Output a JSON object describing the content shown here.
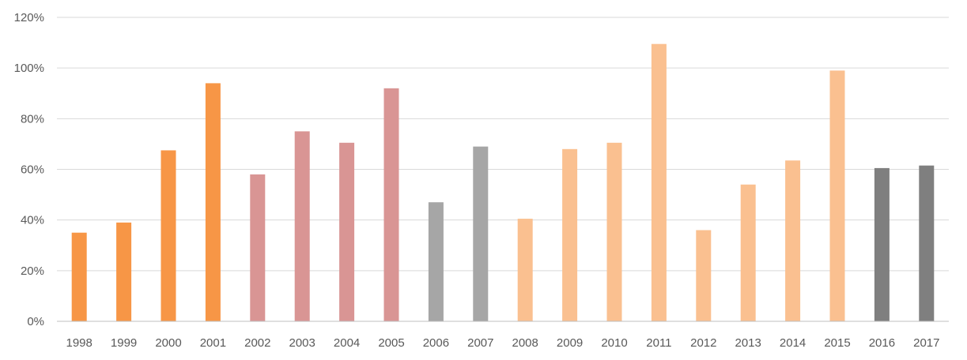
{
  "chart_data": {
    "type": "bar",
    "title": "",
    "xlabel": "",
    "ylabel": "",
    "ylim": [
      0,
      120
    ],
    "y_tick_values": [
      0,
      20,
      40,
      60,
      80,
      100,
      120
    ],
    "y_tick_labels": [
      "0%",
      "20%",
      "40%",
      "60%",
      "80%",
      "100%",
      "120%"
    ],
    "grid": true,
    "legend": "none",
    "categories": [
      "1998",
      "1999",
      "2000",
      "2001",
      "2002",
      "2003",
      "2004",
      "2005",
      "2006",
      "2007",
      "2008",
      "2009",
      "2010",
      "2011",
      "2012",
      "2013",
      "2014",
      "2015",
      "2016",
      "2017"
    ],
    "values": [
      35,
      39,
      67.5,
      94,
      58,
      75,
      70.5,
      92,
      47,
      69,
      40.5,
      68,
      70.5,
      109.5,
      36,
      54,
      63.5,
      99,
      60.5,
      61.5
    ],
    "colors": [
      "#f79646",
      "#f79646",
      "#f79646",
      "#f79646",
      "#d99594",
      "#d99594",
      "#d99594",
      "#d99594",
      "#a6a6a6",
      "#a6a6a6",
      "#fac090",
      "#fac090",
      "#fac090",
      "#fac090",
      "#fac090",
      "#fac090",
      "#fac090",
      "#fac090",
      "#7f7f7f",
      "#7f7f7f"
    ]
  }
}
